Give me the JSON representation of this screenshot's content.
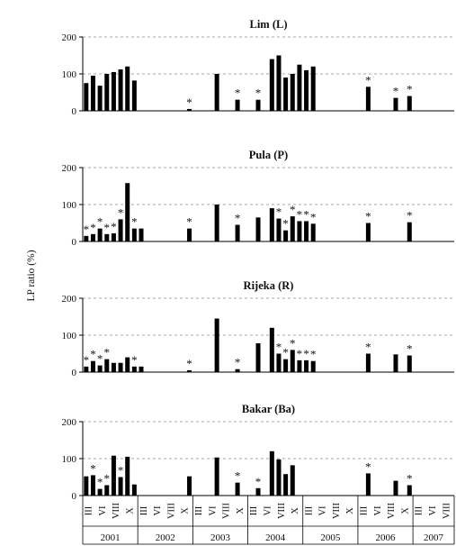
{
  "figure": {
    "ylabel": "LP ratio (%)",
    "slots": 54,
    "month_labels": [
      "III",
      "VI",
      "VIII",
      "X"
    ],
    "years": [
      "2001",
      "2002",
      "2003",
      "2004",
      "2005",
      "2006",
      "2007"
    ],
    "note": ""
  },
  "chart_data": [
    {
      "type": "bar",
      "title": "Lim (L)",
      "ylim": [
        0,
        200
      ],
      "yticks": [
        0,
        100,
        200
      ],
      "grid": true,
      "values": [
        75,
        95,
        68,
        100,
        105,
        112,
        120,
        82,
        0,
        0,
        0,
        0,
        0,
        0,
        0,
        5,
        0,
        0,
        0,
        100,
        0,
        0,
        30,
        0,
        0,
        30,
        0,
        140,
        150,
        90,
        100,
        125,
        110,
        120,
        0,
        0,
        0,
        0,
        0,
        0,
        0,
        65,
        0,
        0,
        0,
        35,
        0,
        40,
        0,
        0,
        0,
        0,
        0,
        0
      ],
      "starred": [
        15,
        22,
        25,
        41,
        45,
        47
      ]
    },
    {
      "type": "bar",
      "title": "Pula (P)",
      "ylim": [
        0,
        200
      ],
      "yticks": [
        0,
        100,
        200
      ],
      "grid": true,
      "values": [
        15,
        20,
        35,
        20,
        22,
        60,
        158,
        35,
        35,
        0,
        0,
        0,
        0,
        0,
        0,
        35,
        0,
        0,
        0,
        100,
        0,
        0,
        45,
        0,
        0,
        65,
        0,
        90,
        62,
        30,
        68,
        55,
        55,
        48,
        0,
        0,
        0,
        0,
        0,
        0,
        0,
        50,
        0,
        0,
        0,
        0,
        0,
        52,
        0,
        0,
        0,
        0,
        0,
        0
      ],
      "starred": [
        0,
        1,
        2,
        3,
        4,
        5,
        7,
        15,
        22,
        28,
        29,
        30,
        31,
        32,
        33,
        41,
        47
      ]
    },
    {
      "type": "bar",
      "title": "Rijeka (R)",
      "ylim": [
        0,
        200
      ],
      "yticks": [
        0,
        100,
        200
      ],
      "grid": true,
      "values": [
        15,
        30,
        18,
        35,
        25,
        25,
        40,
        15,
        15,
        0,
        0,
        0,
        0,
        0,
        0,
        5,
        0,
        0,
        0,
        145,
        0,
        0,
        8,
        0,
        0,
        78,
        0,
        120,
        50,
        35,
        60,
        32,
        32,
        30,
        0,
        0,
        0,
        0,
        0,
        0,
        0,
        50,
        0,
        0,
        0,
        48,
        0,
        45,
        0,
        0,
        0,
        0,
        0,
        0
      ],
      "starred": [
        0,
        1,
        2,
        3,
        7,
        15,
        22,
        28,
        29,
        30,
        31,
        32,
        33,
        41,
        47
      ]
    },
    {
      "type": "bar",
      "title": "Bakar (Ba)",
      "ylim": [
        0,
        200
      ],
      "yticks": [
        0,
        100,
        200
      ],
      "grid": true,
      "values": [
        52,
        55,
        18,
        28,
        108,
        50,
        105,
        30,
        0,
        0,
        0,
        0,
        0,
        0,
        0,
        52,
        0,
        0,
        0,
        103,
        0,
        0,
        35,
        0,
        0,
        20,
        0,
        120,
        98,
        58,
        82,
        0,
        0,
        0,
        0,
        0,
        0,
        0,
        0,
        0,
        0,
        60,
        0,
        0,
        0,
        40,
        0,
        28,
        0,
        0,
        0,
        0,
        0,
        0
      ],
      "starred": [
        1,
        2,
        3,
        5,
        22,
        25,
        41,
        47
      ]
    }
  ]
}
